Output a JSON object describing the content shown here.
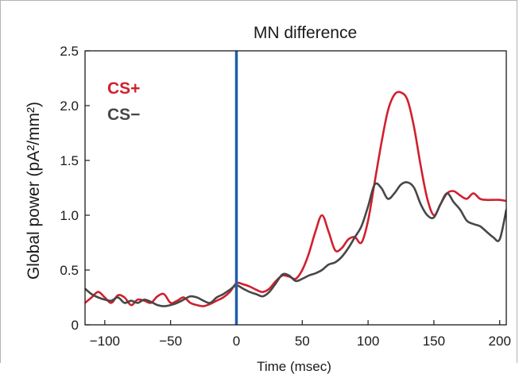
{
  "chart_data": {
    "type": "line",
    "title": "MN difference",
    "xlabel": "Time (msec)",
    "ylabel": "Global power (pA²/mm²)",
    "xlim": [
      -115,
      205
    ],
    "ylim": [
      0,
      2.5
    ],
    "xticks": [
      -100,
      -50,
      0,
      50,
      100,
      150,
      200
    ],
    "yticks": [
      0,
      0.5,
      1.0,
      1.5,
      2.0,
      2.5
    ],
    "ytick_labels": [
      "0",
      "0.5",
      "1.0",
      "1.5",
      "2.0",
      "2.5"
    ],
    "xtick_labels": [
      "−100",
      "−50",
      "0",
      "50",
      "100",
      "150",
      "200"
    ],
    "grid": false,
    "legend_position": "top-left",
    "event_line": {
      "x": 0,
      "color": "#1f5fa8"
    },
    "series": [
      {
        "name": "CS+",
        "color": "#d0202e",
        "x": [
          -115,
          -110,
          -105,
          -100,
          -95,
          -90,
          -85,
          -80,
          -75,
          -70,
          -65,
          -60,
          -55,
          -50,
          -45,
          -40,
          -35,
          -30,
          -25,
          -20,
          -15,
          -10,
          -5,
          0,
          5,
          10,
          15,
          20,
          25,
          30,
          35,
          40,
          45,
          50,
          55,
          60,
          65,
          70,
          75,
          80,
          85,
          90,
          95,
          100,
          105,
          110,
          115,
          120,
          125,
          130,
          135,
          140,
          145,
          150,
          155,
          160,
          165,
          170,
          175,
          180,
          185,
          190,
          195,
          200,
          205
        ],
        "y": [
          0.2,
          0.25,
          0.3,
          0.25,
          0.2,
          0.27,
          0.25,
          0.18,
          0.23,
          0.22,
          0.2,
          0.26,
          0.28,
          0.2,
          0.22,
          0.25,
          0.2,
          0.18,
          0.17,
          0.19,
          0.22,
          0.25,
          0.3,
          0.38,
          0.37,
          0.35,
          0.32,
          0.3,
          0.33,
          0.4,
          0.45,
          0.44,
          0.42,
          0.5,
          0.65,
          0.85,
          1.0,
          0.85,
          0.68,
          0.7,
          0.78,
          0.8,
          0.75,
          0.95,
          1.3,
          1.65,
          1.95,
          2.1,
          2.12,
          2.05,
          1.8,
          1.45,
          1.15,
          1.0,
          1.1,
          1.2,
          1.22,
          1.18,
          1.15,
          1.2,
          1.15,
          1.14,
          1.14,
          1.14,
          1.13
        ]
      },
      {
        "name": "CS−",
        "color": "#474747",
        "x": [
          -115,
          -110,
          -105,
          -100,
          -95,
          -90,
          -85,
          -80,
          -75,
          -70,
          -65,
          -60,
          -55,
          -50,
          -45,
          -40,
          -35,
          -30,
          -25,
          -20,
          -15,
          -10,
          -5,
          0,
          5,
          10,
          15,
          20,
          25,
          30,
          35,
          40,
          45,
          50,
          55,
          60,
          65,
          70,
          75,
          80,
          85,
          90,
          95,
          100,
          105,
          110,
          115,
          120,
          125,
          130,
          135,
          140,
          145,
          150,
          155,
          160,
          165,
          170,
          175,
          180,
          185,
          190,
          195,
          200,
          205
        ],
        "y": [
          0.33,
          0.28,
          0.25,
          0.23,
          0.22,
          0.25,
          0.2,
          0.22,
          0.2,
          0.23,
          0.21,
          0.18,
          0.17,
          0.18,
          0.2,
          0.23,
          0.26,
          0.25,
          0.22,
          0.2,
          0.25,
          0.28,
          0.32,
          0.36,
          0.33,
          0.3,
          0.28,
          0.26,
          0.3,
          0.38,
          0.46,
          0.45,
          0.4,
          0.42,
          0.45,
          0.47,
          0.5,
          0.55,
          0.57,
          0.62,
          0.7,
          0.8,
          0.9,
          1.08,
          1.28,
          1.25,
          1.15,
          1.2,
          1.28,
          1.3,
          1.25,
          1.1,
          1.0,
          0.98,
          1.1,
          1.2,
          1.12,
          1.05,
          0.95,
          0.92,
          0.9,
          0.85,
          0.8,
          0.78,
          1.05
        ]
      }
    ]
  }
}
